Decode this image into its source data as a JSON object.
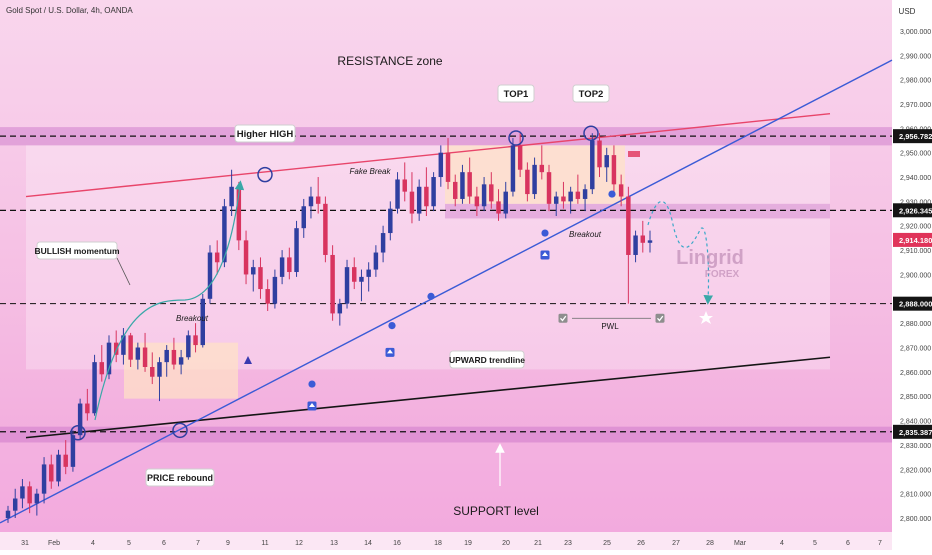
{
  "header": {
    "symbol": "Gold Spot / U.S. Dollar, 4h, OANDA",
    "currency": "USD"
  },
  "colors": {
    "bg_top": "#f8d3ec",
    "bg_bottom": "#f2a6dd",
    "bull": "#2f3fa0",
    "bear": "#d8345f",
    "resistance_trend": "#e8456a",
    "support_trend": "#151515",
    "upward_trend": "#3b5bd6",
    "zone": "#c772c7",
    "label_bg": "#ffffff",
    "price_tag_red": "#e0345a",
    "price_tag_dark": "#151515"
  },
  "chart_data": {
    "type": "candlestick",
    "title": "Gold Spot / U.S. Dollar, 4h, OANDA",
    "y_range": [
      2800,
      3005
    ],
    "y_ticks": [
      "3,000.000",
      "2,990.000",
      "2,980.000",
      "2,970.000",
      "2,960.000",
      "2,950.000",
      "2,940.000",
      "2,930.000",
      "2,920.000",
      "2,910.000",
      "2,900.000",
      "2,890.000",
      "2,880.000",
      "2,870.000",
      "2,860.000",
      "2,850.000",
      "2,840.000",
      "2,830.000",
      "2,820.000",
      "2,810.000",
      "2,800.000"
    ],
    "x_ticks": [
      "31",
      "Feb",
      "4",
      "5",
      "6",
      "7",
      "9",
      "11",
      "12",
      "13",
      "14",
      "16",
      "18",
      "19",
      "20",
      "21",
      "23",
      "25",
      "26",
      "27",
      "28",
      "Mar",
      "4",
      "5",
      "6",
      "7"
    ],
    "price_tags": [
      "2,956.782",
      "2,926.345",
      "2,914.180",
      "2,888.000",
      "2,835.387"
    ],
    "candles": [
      [
        2800,
        2805,
        2798,
        2803
      ],
      [
        2803,
        2812,
        2800,
        2808
      ],
      [
        2808,
        2816,
        2804,
        2813
      ],
      [
        2813,
        2815,
        2802,
        2806
      ],
      [
        2806,
        2812,
        2801,
        2810
      ],
      [
        2810,
        2825,
        2806,
        2822
      ],
      [
        2822,
        2826,
        2812,
        2815
      ],
      [
        2815,
        2828,
        2813,
        2826
      ],
      [
        2826,
        2832,
        2818,
        2821
      ],
      [
        2821,
        2836,
        2819,
        2834
      ],
      [
        2834,
        2849,
        2832,
        2847
      ],
      [
        2847,
        2853,
        2840,
        2843
      ],
      [
        2843,
        2867,
        2842,
        2864
      ],
      [
        2864,
        2871,
        2856,
        2859
      ],
      [
        2859,
        2875,
        2857,
        2872
      ],
      [
        2872,
        2877,
        2864,
        2867
      ],
      [
        2867,
        2878,
        2863,
        2875
      ],
      [
        2875,
        2876,
        2862,
        2865
      ],
      [
        2865,
        2872,
        2861,
        2870
      ],
      [
        2870,
        2876,
        2860,
        2862
      ],
      [
        2862,
        2868,
        2855,
        2858
      ],
      [
        2858,
        2866,
        2848,
        2864
      ],
      [
        2864,
        2871,
        2858,
        2869
      ],
      [
        2869,
        2874,
        2861,
        2863
      ],
      [
        2863,
        2869,
        2859,
        2866
      ],
      [
        2866,
        2877,
        2865,
        2875
      ],
      [
        2875,
        2880,
        2868,
        2871
      ],
      [
        2871,
        2892,
        2870,
        2890
      ],
      [
        2890,
        2912,
        2888,
        2909
      ],
      [
        2909,
        2914,
        2900,
        2905
      ],
      [
        2905,
        2931,
        2903,
        2928
      ],
      [
        2928,
        2943,
        2924,
        2936
      ],
      [
        2936,
        2938,
        2910,
        2914
      ],
      [
        2914,
        2918,
        2896,
        2900
      ],
      [
        2900,
        2906,
        2893,
        2903
      ],
      [
        2903,
        2907,
        2890,
        2894
      ],
      [
        2894,
        2898,
        2885,
        2888
      ],
      [
        2888,
        2902,
        2886,
        2899
      ],
      [
        2899,
        2910,
        2896,
        2907
      ],
      [
        2907,
        2911,
        2898,
        2901
      ],
      [
        2901,
        2922,
        2899,
        2919
      ],
      [
        2919,
        2931,
        2915,
        2928
      ],
      [
        2928,
        2936,
        2923,
        2932
      ],
      [
        2932,
        2940,
        2925,
        2929
      ],
      [
        2929,
        2932,
        2905,
        2908
      ],
      [
        2908,
        2912,
        2881,
        2884
      ],
      [
        2884,
        2890,
        2879,
        2888
      ],
      [
        2888,
        2906,
        2886,
        2903
      ],
      [
        2903,
        2907,
        2894,
        2897
      ],
      [
        2897,
        2902,
        2889,
        2899
      ],
      [
        2899,
        2905,
        2893,
        2902
      ],
      [
        2902,
        2912,
        2899,
        2909
      ],
      [
        2909,
        2920,
        2905,
        2917
      ],
      [
        2917,
        2930,
        2914,
        2927
      ],
      [
        2927,
        2942,
        2925,
        2939
      ],
      [
        2939,
        2946,
        2930,
        2934
      ],
      [
        2934,
        2942,
        2921,
        2925
      ],
      [
        2925,
        2939,
        2922,
        2936
      ],
      [
        2936,
        2944,
        2924,
        2928
      ],
      [
        2928,
        2942,
        2926,
        2940
      ],
      [
        2940,
        2953,
        2936,
        2950
      ],
      [
        2950,
        2956,
        2935,
        2938
      ],
      [
        2938,
        2941,
        2928,
        2931
      ],
      [
        2931,
        2945,
        2929,
        2942
      ],
      [
        2942,
        2948,
        2929,
        2932
      ],
      [
        2932,
        2936,
        2924,
        2928
      ],
      [
        2928,
        2940,
        2926,
        2937
      ],
      [
        2937,
        2942,
        2927,
        2930
      ],
      [
        2930,
        2935,
        2922,
        2925
      ],
      [
        2925,
        2938,
        2923,
        2934
      ],
      [
        2934,
        2956,
        2932,
        2953
      ],
      [
        2953,
        2958,
        2940,
        2943
      ],
      [
        2943,
        2946,
        2930,
        2933
      ],
      [
        2933,
        2948,
        2931,
        2945
      ],
      [
        2945,
        2953,
        2939,
        2942
      ],
      [
        2942,
        2945,
        2926,
        2929
      ],
      [
        2929,
        2934,
        2924,
        2932
      ],
      [
        2932,
        2938,
        2927,
        2930
      ],
      [
        2930,
        2936,
        2925,
        2934
      ],
      [
        2934,
        2941,
        2929,
        2931
      ],
      [
        2931,
        2937,
        2926,
        2935
      ],
      [
        2935,
        2958,
        2933,
        2955
      ],
      [
        2955,
        2958,
        2940,
        2944
      ],
      [
        2944,
        2952,
        2938,
        2949
      ],
      [
        2949,
        2953,
        2934,
        2937
      ],
      [
        2937,
        2941,
        2928,
        2932
      ],
      [
        2932,
        2936,
        2888,
        2908
      ],
      [
        2908,
        2918,
        2905,
        2916
      ],
      [
        2916,
        2922,
        2909,
        2913
      ],
      [
        2913,
        2918,
        2909,
        2914
      ]
    ]
  },
  "annotations": {
    "resistance_zone": "RESISTANCE zone",
    "support_level": "SUPPORT level",
    "top1": "TOP1",
    "top2": "TOP2",
    "higher_high": "Higher HIGH",
    "bullish_momentum": "BULLISH momentum",
    "price_rebound": "PRICE rebound",
    "upward_trendline": "UPWARD trendline",
    "fake_break": "Fake Break",
    "breakout_1": "Breakout",
    "breakout_2": "Breakout",
    "pwl": "PWL",
    "logo_main": "Lingrid",
    "logo_sub": "FOREX"
  }
}
